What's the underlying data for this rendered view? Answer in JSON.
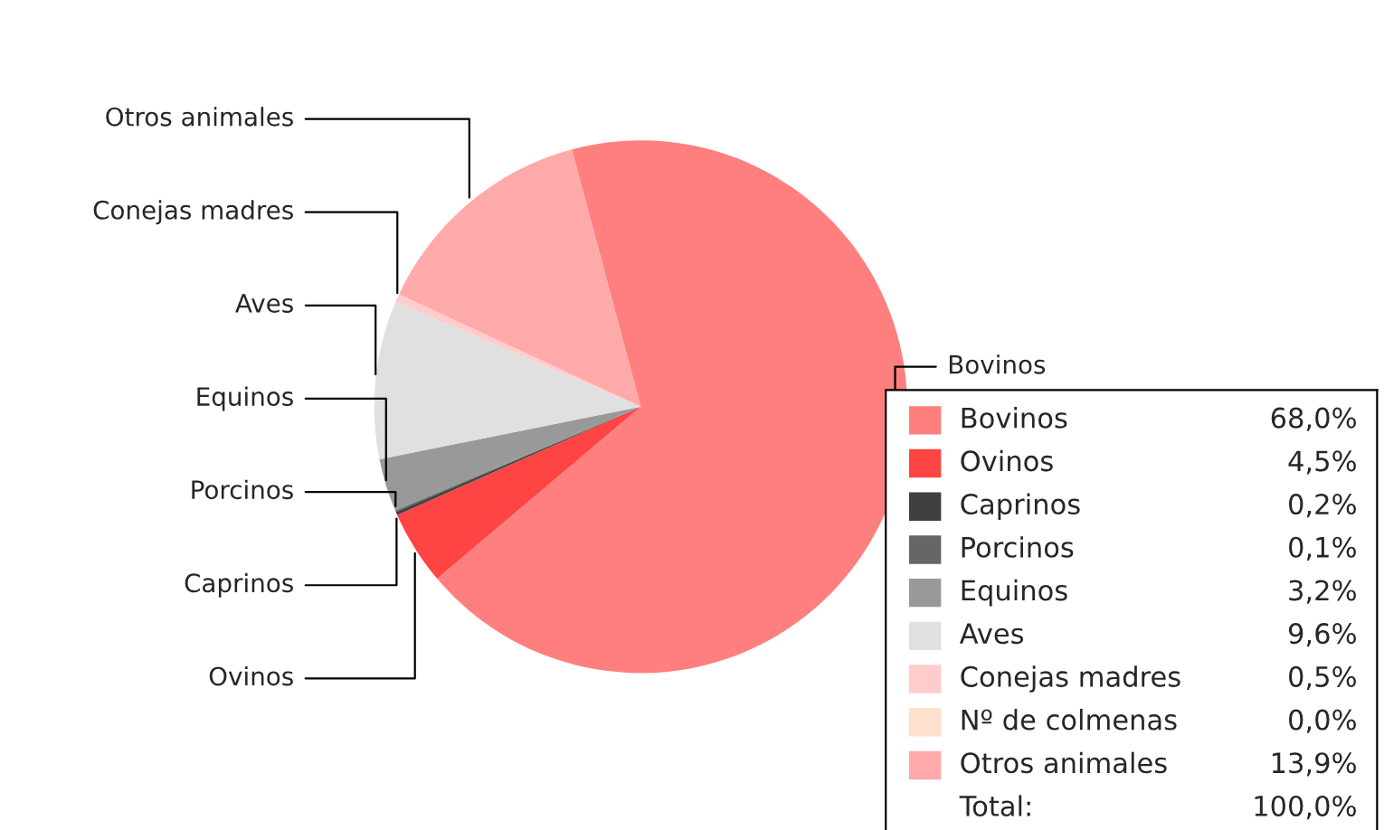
{
  "chart_data": {
    "type": "pie",
    "categories": [
      "Bovinos",
      "Ovinos",
      "Caprinos",
      "Porcinos",
      "Equinos",
      "Aves",
      "Conejas madres",
      "Nº de colmenas",
      "Otros animales"
    ],
    "values": [
      68.0,
      4.5,
      0.2,
      0.1,
      3.2,
      9.6,
      0.5,
      0.0,
      13.9
    ],
    "value_labels": [
      "68,0%",
      "4,5%",
      "0,2%",
      "0,1%",
      "3,2%",
      "9,6%",
      "0,5%",
      "0,0%",
      "13,9%"
    ],
    "colors": [
      "#ff7f7f",
      "#ff4444",
      "#404040",
      "#666666",
      "#999999",
      "#e0e0e0",
      "#ffcccc",
      "#ffe0cc",
      "#ffaaaa"
    ],
    "annotations": [
      "Total:",
      "100,0%"
    ],
    "legend": "bottom right"
  }
}
